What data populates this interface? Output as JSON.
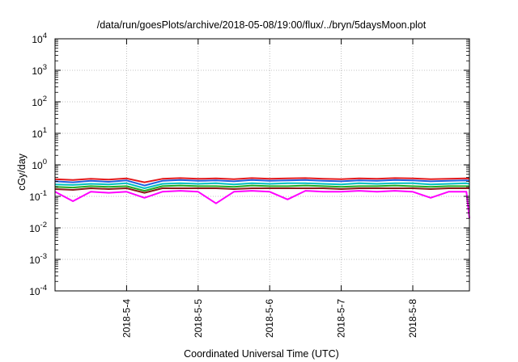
{
  "chart_data": {
    "type": "line",
    "title": "/data/run/goesPlots/archive/2018-05-08/19:00/flux/../bryn/5daysMoon.plot",
    "xlabel": "Coordinated Universal Time (UTC)",
    "ylabel": "cGy/day",
    "y_scale": "log",
    "ylim": [
      0.0001,
      10000
    ],
    "xlim": [
      "2018-05-03 00:00",
      "2018-05-08 19:00"
    ],
    "grid": true,
    "legend": "none",
    "y_ticks": [
      {
        "base": "10",
        "exp": "-4",
        "value": 0.0001
      },
      {
        "base": "10",
        "exp": "-3",
        "value": 0.001
      },
      {
        "base": "10",
        "exp": "-2",
        "value": 0.01
      },
      {
        "base": "10",
        "exp": "-1",
        "value": 0.1
      },
      {
        "base": "10",
        "exp": "0",
        "value": 1
      },
      {
        "base": "10",
        "exp": "1",
        "value": 10
      },
      {
        "base": "10",
        "exp": "2",
        "value": 100
      },
      {
        "base": "10",
        "exp": "3",
        "value": 1000
      },
      {
        "base": "10",
        "exp": "4",
        "value": 10000
      }
    ],
    "x_ticks": [
      "2018-5-4",
      "2018-5-5",
      "2018-5-6",
      "2018-5-7",
      "2018-5-8"
    ],
    "x": [
      "2018-05-03 00:00",
      "2018-05-03 06:00",
      "2018-05-03 12:00",
      "2018-05-03 18:00",
      "2018-05-04 00:00",
      "2018-05-04 06:00",
      "2018-05-04 12:00",
      "2018-05-04 18:00",
      "2018-05-05 00:00",
      "2018-05-05 06:00",
      "2018-05-05 12:00",
      "2018-05-05 18:00",
      "2018-05-06 00:00",
      "2018-05-06 06:00",
      "2018-05-06 12:00",
      "2018-05-06 18:00",
      "2018-05-07 00:00",
      "2018-05-07 06:00",
      "2018-05-07 12:00",
      "2018-05-07 18:00",
      "2018-05-08 00:00",
      "2018-05-08 06:00",
      "2018-05-08 12:00",
      "2018-05-08 18:00",
      "2018-05-08 19:00"
    ],
    "series": [
      {
        "color": "#e41a1c",
        "values": [
          0.35,
          0.33,
          0.36,
          0.34,
          0.37,
          0.28,
          0.36,
          0.38,
          0.36,
          0.37,
          0.35,
          0.38,
          0.36,
          0.37,
          0.38,
          0.36,
          0.35,
          0.37,
          0.36,
          0.38,
          0.37,
          0.35,
          0.36,
          0.37,
          0.36
        ]
      },
      {
        "color": "#2060e0",
        "values": [
          0.3,
          0.28,
          0.31,
          0.29,
          0.32,
          0.22,
          0.31,
          0.33,
          0.31,
          0.32,
          0.3,
          0.33,
          0.31,
          0.32,
          0.33,
          0.31,
          0.3,
          0.32,
          0.31,
          0.33,
          0.32,
          0.3,
          0.31,
          0.32,
          0.31
        ]
      },
      {
        "color": "#00c0c0",
        "values": [
          0.24,
          0.23,
          0.25,
          0.24,
          0.26,
          0.18,
          0.25,
          0.26,
          0.25,
          0.26,
          0.24,
          0.26,
          0.25,
          0.26,
          0.26,
          0.25,
          0.24,
          0.26,
          0.25,
          0.26,
          0.26,
          0.24,
          0.25,
          0.26,
          0.25
        ]
      },
      {
        "color": "#22aa22",
        "values": [
          0.2,
          0.19,
          0.21,
          0.2,
          0.21,
          0.15,
          0.21,
          0.22,
          0.21,
          0.21,
          0.2,
          0.22,
          0.21,
          0.21,
          0.22,
          0.21,
          0.2,
          0.21,
          0.21,
          0.22,
          0.21,
          0.2,
          0.21,
          0.21,
          0.21
        ]
      },
      {
        "color": "#8b1a1a",
        "values": [
          0.17,
          0.16,
          0.18,
          0.17,
          0.18,
          0.13,
          0.18,
          0.18,
          0.18,
          0.18,
          0.17,
          0.18,
          0.18,
          0.18,
          0.18,
          0.18,
          0.17,
          0.18,
          0.18,
          0.18,
          0.18,
          0.17,
          0.18,
          0.18,
          0.18
        ]
      },
      {
        "color": "#ff00ff",
        "values": [
          0.14,
          0.07,
          0.14,
          0.13,
          0.14,
          0.09,
          0.14,
          0.15,
          0.14,
          0.06,
          0.14,
          0.15,
          0.14,
          0.08,
          0.15,
          0.14,
          0.14,
          0.15,
          0.14,
          0.15,
          0.14,
          0.09,
          0.14,
          0.14,
          0.02
        ]
      }
    ]
  }
}
